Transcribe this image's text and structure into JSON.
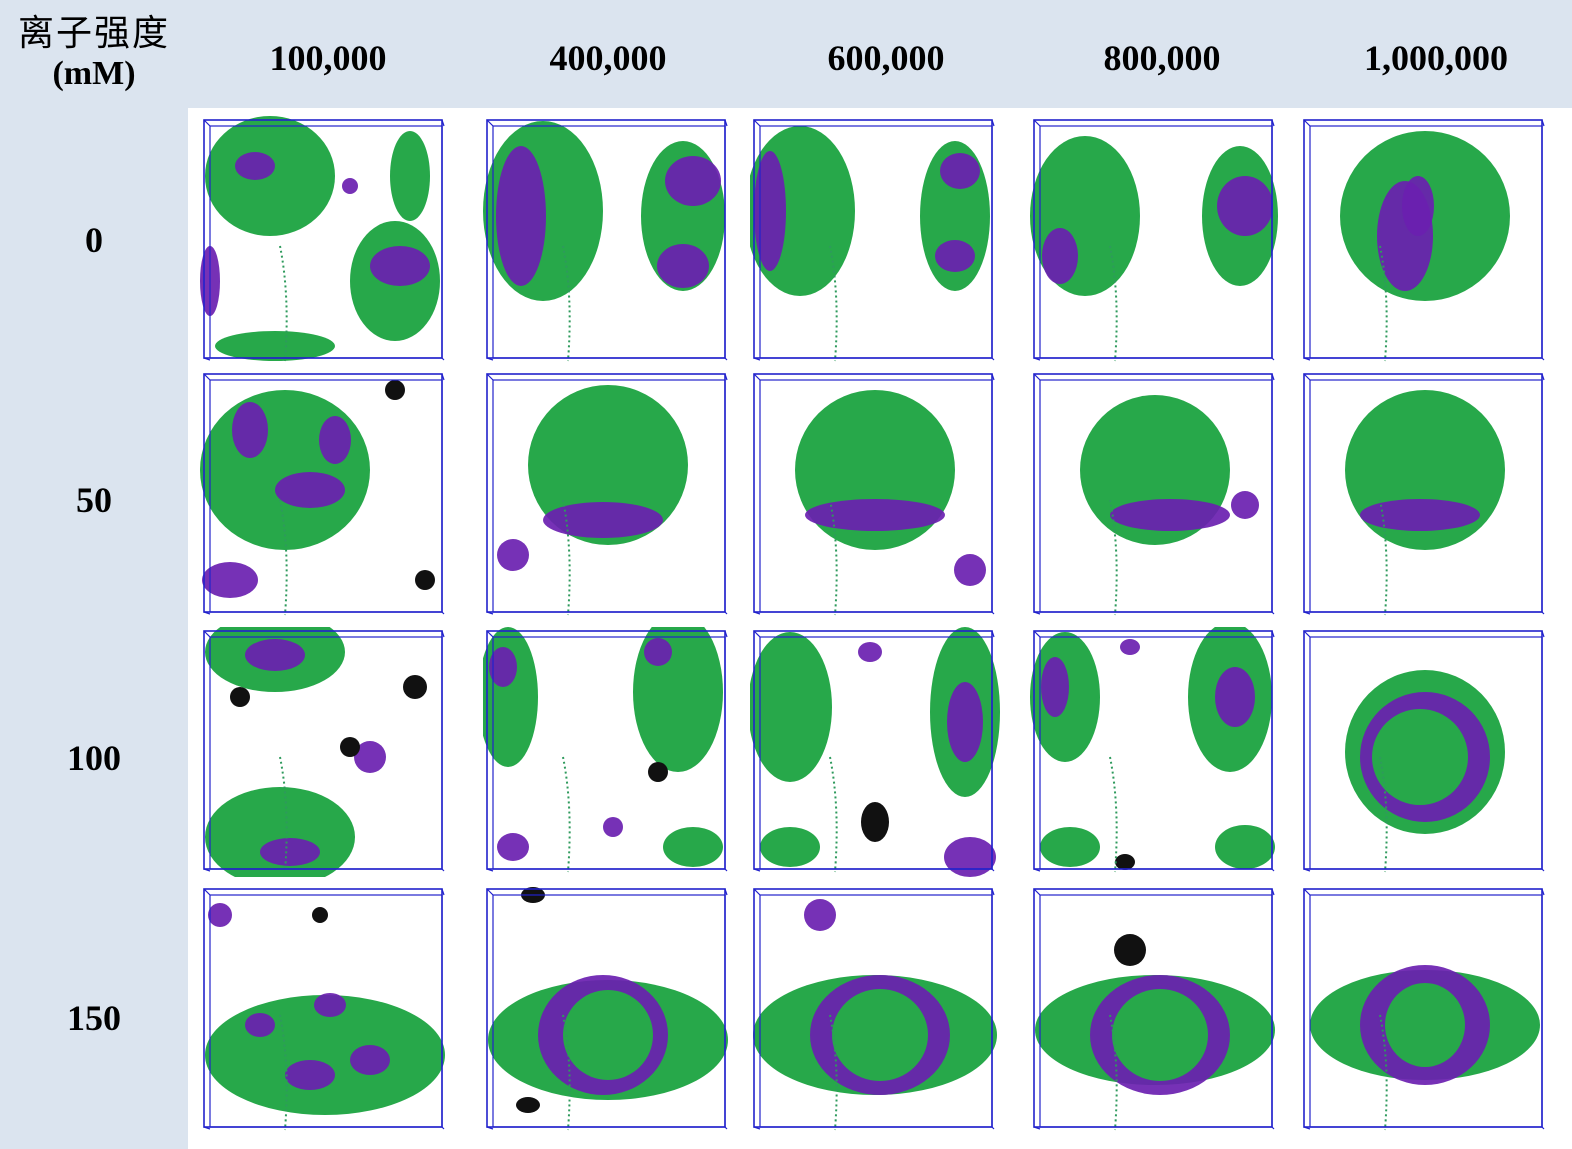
{
  "corner": {
    "label_zh": "离子强度",
    "unit": "(mM)"
  },
  "columns": [
    "100,000",
    "400,000",
    "600,000",
    "800,000",
    "1,000,000"
  ],
  "rows": [
    "0",
    "50",
    "100",
    "150"
  ],
  "colors": {
    "header_background": "#dbe4ef",
    "box_edges": "#2222cc",
    "green_particles": "#27a84a",
    "purple_particles": "#6a1fb0",
    "black_particles": "#111111"
  }
}
